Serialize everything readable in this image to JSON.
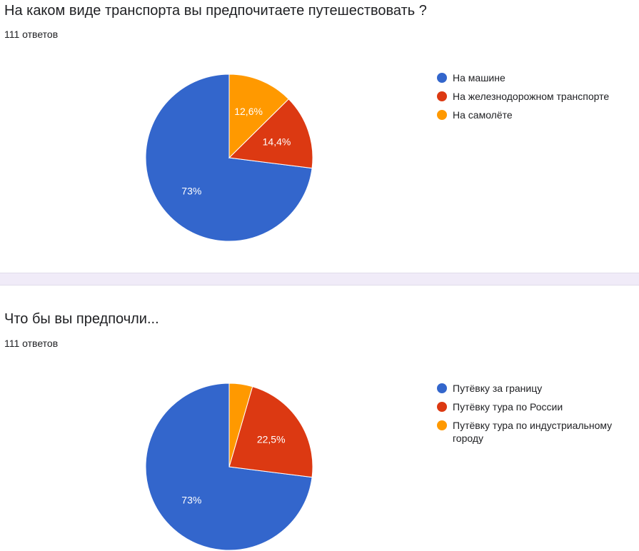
{
  "colors": {
    "blue": "#3366cc",
    "red": "#dc3912",
    "orange": "#ff9900"
  },
  "questions": [
    {
      "title": "На каком виде транспорта вы предпочитаете путешествовать ?",
      "responses": "111 ответов"
    },
    {
      "title": "Что бы вы предпочли...",
      "responses": "111 ответов"
    }
  ],
  "chart_data": [
    {
      "type": "pie",
      "title": "На каком виде транспорта вы предпочитаете путешествовать ?",
      "categories": [
        "На машине",
        "На железнодорожном транспорте",
        "На самолёте"
      ],
      "values": [
        73,
        14.4,
        12.6
      ],
      "labels": [
        "73%",
        "14,4%",
        "12,6%"
      ],
      "colors": [
        "#3366cc",
        "#dc3912",
        "#ff9900"
      ],
      "legend": "right"
    },
    {
      "type": "pie",
      "title": "Что бы вы предпочли...",
      "categories": [
        "Путёвку за границу",
        "Путёвку тура по России",
        "Путёвку тура по индустриальному городу"
      ],
      "values": [
        73,
        22.5,
        4.5
      ],
      "labels": [
        "73%",
        "22,5%",
        ""
      ],
      "colors": [
        "#3366cc",
        "#dc3912",
        "#ff9900"
      ],
      "legend": "right"
    }
  ]
}
